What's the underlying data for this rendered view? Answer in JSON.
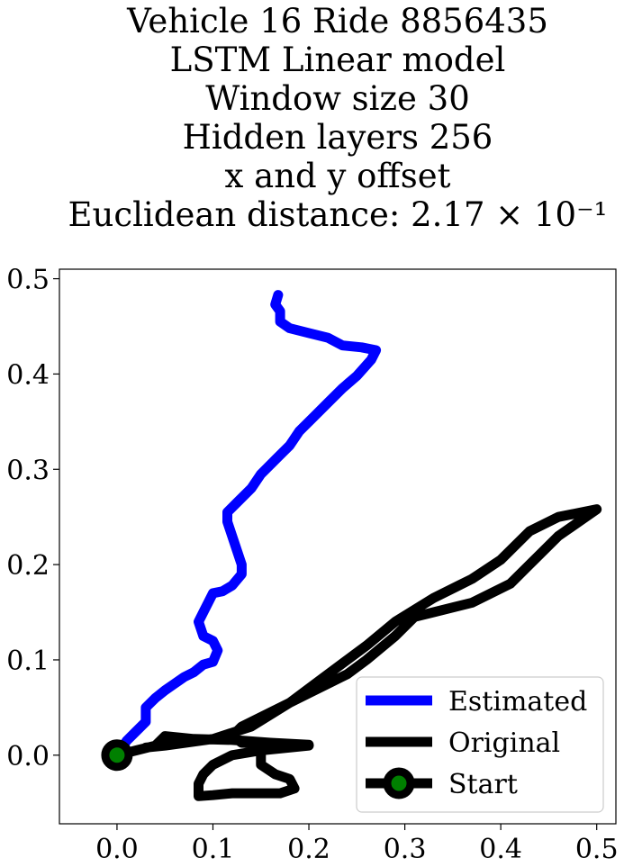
{
  "chart_data": {
    "type": "line",
    "title_lines": [
      "Vehicle 16 Ride 8856435",
      "LSTM Linear model",
      "Window size 30",
      "Hidden layers 256",
      "x and y offset",
      "Euclidean distance: 2.17 × 10⁻¹"
    ],
    "xlabel": "",
    "ylabel": "",
    "xlim": [
      -0.06,
      0.52
    ],
    "ylim": [
      -0.072,
      0.51
    ],
    "x_ticks": [
      0.0,
      0.1,
      0.2,
      0.3,
      0.4,
      0.5
    ],
    "x_tick_labels": [
      "0.0",
      "0.1",
      "0.2",
      "0.3",
      "0.4",
      "0.5"
    ],
    "y_ticks": [
      0.0,
      0.1,
      0.2,
      0.3,
      0.4,
      0.5
    ],
    "y_tick_labels": [
      "0.0",
      "0.1",
      "0.2",
      "0.3",
      "0.4",
      "0.5"
    ],
    "grid": false,
    "legend_position": "lower-right",
    "series": [
      {
        "name": "Estimated",
        "color": "#0000ff",
        "points": [
          [
            0.0,
            0.0
          ],
          [
            0.01,
            0.015
          ],
          [
            0.02,
            0.025
          ],
          [
            0.03,
            0.035
          ],
          [
            0.03,
            0.05
          ],
          [
            0.04,
            0.06
          ],
          [
            0.05,
            0.068
          ],
          [
            0.06,
            0.075
          ],
          [
            0.07,
            0.082
          ],
          [
            0.08,
            0.087
          ],
          [
            0.09,
            0.095
          ],
          [
            0.1,
            0.098
          ],
          [
            0.105,
            0.11
          ],
          [
            0.1,
            0.12
          ],
          [
            0.09,
            0.125
          ],
          [
            0.085,
            0.14
          ],
          [
            0.09,
            0.15
          ],
          [
            0.095,
            0.16
          ],
          [
            0.1,
            0.17
          ],
          [
            0.11,
            0.172
          ],
          [
            0.12,
            0.178
          ],
          [
            0.13,
            0.19
          ],
          [
            0.13,
            0.2
          ],
          [
            0.125,
            0.215
          ],
          [
            0.12,
            0.23
          ],
          [
            0.115,
            0.245
          ],
          [
            0.115,
            0.255
          ],
          [
            0.125,
            0.265
          ],
          [
            0.14,
            0.28
          ],
          [
            0.15,
            0.295
          ],
          [
            0.165,
            0.31
          ],
          [
            0.18,
            0.325
          ],
          [
            0.19,
            0.34
          ],
          [
            0.205,
            0.355
          ],
          [
            0.22,
            0.37
          ],
          [
            0.235,
            0.385
          ],
          [
            0.25,
            0.398
          ],
          [
            0.265,
            0.415
          ],
          [
            0.27,
            0.425
          ],
          [
            0.255,
            0.428
          ],
          [
            0.235,
            0.43
          ],
          [
            0.22,
            0.438
          ],
          [
            0.2,
            0.443
          ],
          [
            0.18,
            0.448
          ],
          [
            0.17,
            0.455
          ],
          [
            0.17,
            0.466
          ],
          [
            0.165,
            0.473
          ],
          [
            0.168,
            0.483
          ]
        ]
      },
      {
        "name": "Original",
        "color": "#000000",
        "points": [
          [
            0.0,
            0.0
          ],
          [
            0.02,
            0.005
          ],
          [
            0.04,
            0.01
          ],
          [
            0.05,
            0.02
          ],
          [
            0.08,
            0.017
          ],
          [
            0.12,
            0.016
          ],
          [
            0.16,
            0.013
          ],
          [
            0.2,
            0.011
          ],
          [
            0.18,
            0.008
          ],
          [
            0.16,
            0.007
          ],
          [
            0.15,
            0.005
          ],
          [
            0.15,
            -0.01
          ],
          [
            0.165,
            -0.02
          ],
          [
            0.18,
            -0.025
          ],
          [
            0.185,
            -0.035
          ],
          [
            0.17,
            -0.04
          ],
          [
            0.14,
            -0.04
          ],
          [
            0.12,
            -0.04
          ],
          [
            0.1,
            -0.042
          ],
          [
            0.085,
            -0.043
          ],
          [
            0.085,
            -0.03
          ],
          [
            0.09,
            -0.02
          ],
          [
            0.1,
            -0.01
          ],
          [
            0.12,
            0.0
          ],
          [
            0.15,
            0.005
          ],
          [
            0.2,
            0.01
          ],
          [
            0.16,
            0.012
          ],
          [
            0.13,
            0.013
          ],
          [
            0.12,
            0.02
          ],
          [
            0.13,
            0.03
          ],
          [
            0.16,
            0.045
          ],
          [
            0.2,
            0.065
          ],
          [
            0.24,
            0.085
          ],
          [
            0.26,
            0.1
          ],
          [
            0.29,
            0.125
          ],
          [
            0.31,
            0.145
          ],
          [
            0.33,
            0.15
          ],
          [
            0.37,
            0.16
          ],
          [
            0.41,
            0.18
          ],
          [
            0.43,
            0.2
          ],
          [
            0.46,
            0.23
          ],
          [
            0.5,
            0.258
          ],
          [
            0.46,
            0.25
          ],
          [
            0.43,
            0.235
          ],
          [
            0.4,
            0.205
          ],
          [
            0.37,
            0.185
          ],
          [
            0.33,
            0.165
          ],
          [
            0.29,
            0.14
          ],
          [
            0.26,
            0.115
          ],
          [
            0.22,
            0.085
          ],
          [
            0.18,
            0.055
          ],
          [
            0.14,
            0.03
          ],
          [
            0.1,
            0.017
          ],
          [
            0.05,
            0.01
          ],
          [
            0.03,
            0.008
          ]
        ]
      }
    ],
    "start_marker": {
      "name": "Start",
      "x": 0.0,
      "y": 0.0,
      "edge_color": "#000000",
      "face_color": "#008000"
    }
  }
}
